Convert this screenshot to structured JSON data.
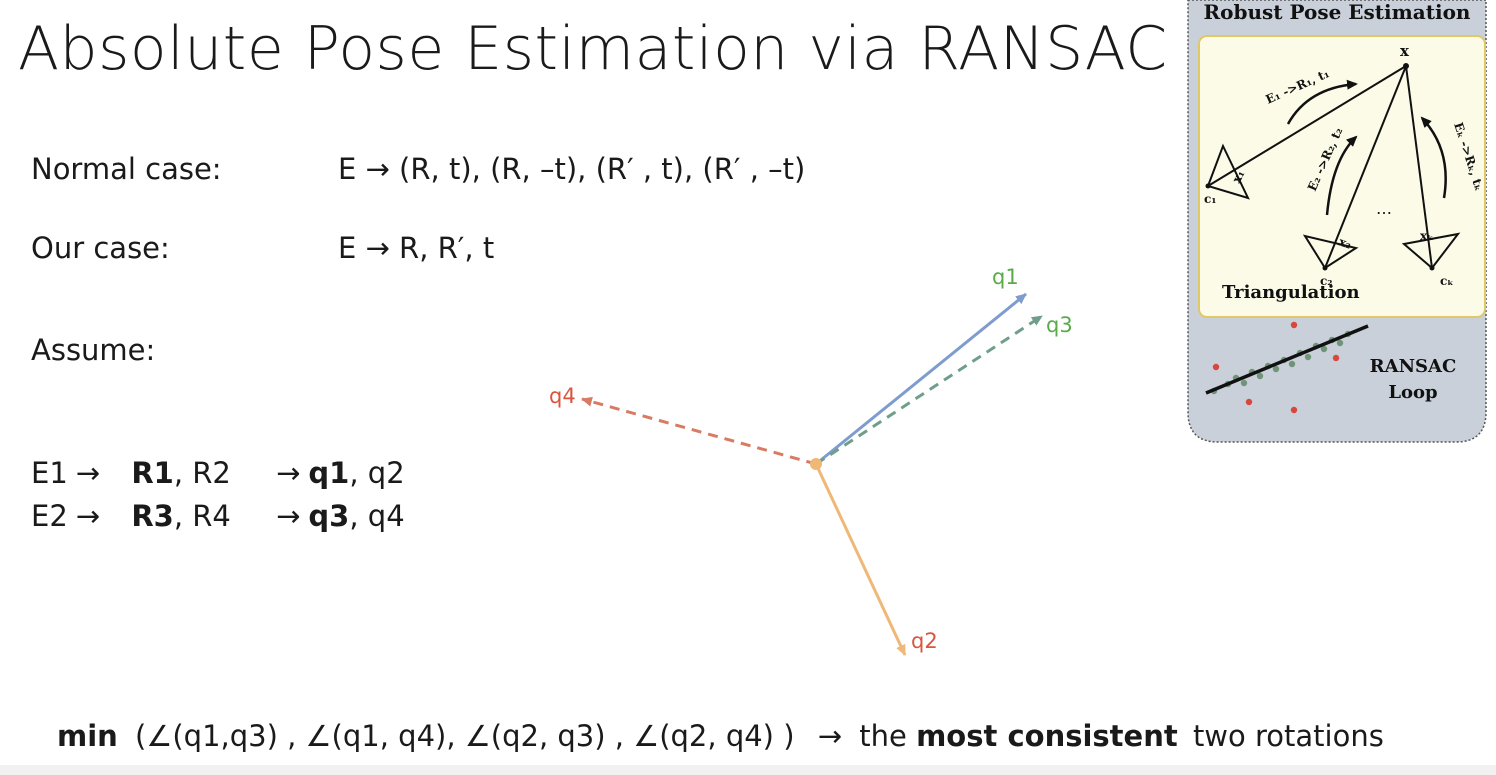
{
  "slide": {
    "title": "Absolute Pose Estimation via RANSAC"
  },
  "cases": {
    "normal_label": "Normal case:",
    "normal_formula": "E  →  (R, t), (R, –t), (R′ , t), (R′ , –t)",
    "our_label": "Our case:",
    "our_formula": "E  →   R, R′, t",
    "assume_label": "Assume:"
  },
  "mapping": {
    "row1": {
      "e": "E1",
      "arrow": "→",
      "r_bold": "R1",
      "r_rest": ", R2",
      "arrow2": "→",
      "q_bold": "q1",
      "q_rest": ", q2"
    },
    "row2": {
      "e": "E2",
      "arrow": "→",
      "r_bold": "R3",
      "r_rest": ", R4",
      "arrow2": "→",
      "q_bold": "q3",
      "q_rest": ", q4"
    }
  },
  "vectors": {
    "colors": {
      "q1": "#7f9ccf",
      "q2": "#f0b877",
      "q3": "#6f9f8a",
      "q4": "#d77c62",
      "origin": "#f0b877"
    },
    "items": [
      {
        "label": "q1",
        "label_color": "#5aaa4a",
        "style": "solid",
        "color": "#7f9ccf"
      },
      {
        "label": "q2",
        "label_color": "#d9553f",
        "style": "solid",
        "color": "#f0b877"
      },
      {
        "label": "q3",
        "label_color": "#5aaa4a",
        "style": "dashed",
        "color": "#6f9f8a"
      },
      {
        "label": "q4",
        "label_color": "#d9553f",
        "style": "dashed",
        "color": "#d77c62"
      }
    ]
  },
  "figure": {
    "title": "Robust Pose Estimation",
    "point_label": "x",
    "triangulation_label": "Triangulation",
    "ransac_line1": "RANSAC",
    "ransac_line2": "Loop",
    "edge1_label": "E₁ ->R₁, t₁",
    "edge2_label": "E₂ ->R₂, t₂",
    "edgek_label": "Eₖ ->Rₖ, tₖ",
    "dots": "…",
    "cam_labels": [
      "c₁",
      "c₂",
      "cₖ"
    ],
    "proj_labels": [
      "x₁",
      "x₂",
      "xₖ"
    ],
    "colors": {
      "panel_bg": "#c9d0da",
      "inner_bg": "#fbfbe8",
      "inner_border": "#e1c866",
      "inlier": "#6f9477",
      "outlier": "#d9463c"
    }
  },
  "conclusion": {
    "min_word": "min",
    "angles": "(∠(q1,q3) , ∠(q1, q4),  ∠(q2, q3) ,  ∠(q2, q4) )",
    "arrow": "→",
    "the": "the",
    "bold_phrase": "most consistent",
    "tail": "two rotations"
  }
}
